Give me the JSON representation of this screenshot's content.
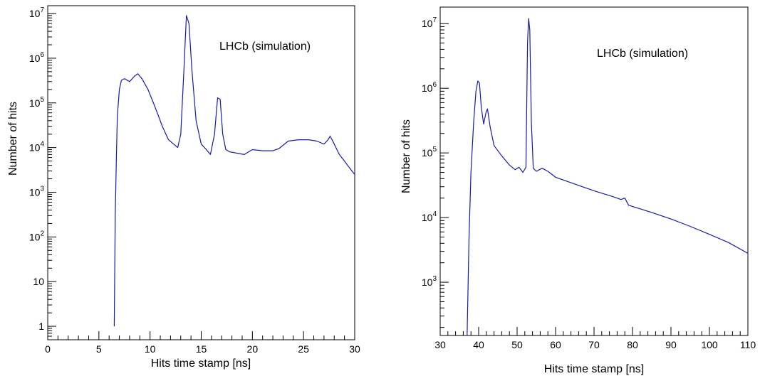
{
  "chart_data": [
    {
      "type": "line",
      "xlabel": "Hits time stamp [ns]",
      "ylabel": "Number of hits",
      "annotation": "LHCb (simulation)",
      "xlim": [
        0,
        30
      ],
      "ylim": [
        0.5,
        15000000
      ],
      "log_y": true,
      "grid": false,
      "x_ticks": [
        0,
        5,
        10,
        15,
        20,
        25,
        30
      ],
      "x_tick_labels": [
        "0",
        "5",
        "10",
        "15",
        "20",
        "25",
        "30"
      ],
      "y_ticks": [
        1,
        10,
        100,
        1000,
        10000,
        100000,
        1000000,
        10000000
      ],
      "y_tick_labels": [
        {
          "base": "1",
          "exp": ""
        },
        {
          "base": "10",
          "exp": ""
        },
        {
          "base": "10",
          "exp": "2"
        },
        {
          "base": "10",
          "exp": "3"
        },
        {
          "base": "10",
          "exp": "4"
        },
        {
          "base": "10",
          "exp": "5"
        },
        {
          "base": "10",
          "exp": "6"
        },
        {
          "base": "10",
          "exp": "7"
        }
      ],
      "series": [
        {
          "color": "#1a1aa8",
          "x": [
            6.5,
            6.6,
            6.7,
            6.8,
            7.0,
            7.2,
            7.5,
            8.0,
            8.5,
            8.8,
            9.2,
            9.8,
            10.5,
            11.2,
            11.8,
            12.3,
            12.7,
            13.0,
            13.3,
            13.55,
            13.8,
            14.1,
            14.5,
            15.0,
            15.5,
            15.9,
            16.3,
            16.6,
            16.85,
            17.1,
            17.4,
            17.8,
            18.5,
            19.2,
            20.0,
            21.0,
            22.0,
            22.6,
            23.5,
            24.5,
            25.5,
            26.3,
            27.0,
            27.4,
            27.6,
            28.0,
            28.5,
            29.0,
            29.5,
            30.0
          ],
          "y": [
            1,
            300,
            5000,
            50000,
            200000,
            320000,
            350000,
            300000,
            400000,
            450000,
            350000,
            200000,
            80000,
            30000,
            15000,
            12000,
            10000,
            20000,
            500000,
            9000000,
            6000000,
            500000,
            40000,
            12000,
            9000,
            7000,
            20000,
            130000,
            120000,
            20000,
            9000,
            8000,
            7500,
            7000,
            9000,
            8500,
            8500,
            9500,
            14000,
            15000,
            15000,
            14000,
            12000,
            15000,
            18000,
            12000,
            7000,
            5000,
            3500,
            2500
          ]
        }
      ]
    },
    {
      "type": "line",
      "xlabel": "Hits time stamp [ns]",
      "ylabel": "Number of hits",
      "annotation": "LHCb (simulation)",
      "xlim": [
        30,
        110
      ],
      "ylim": [
        150,
        18000000
      ],
      "log_y": true,
      "grid": false,
      "x_ticks": [
        30,
        40,
        50,
        60,
        70,
        80,
        90,
        100,
        110
      ],
      "x_tick_labels": [
        "30",
        "40",
        "50",
        "60",
        "70",
        "80",
        "90",
        "100",
        "110"
      ],
      "y_ticks": [
        1000,
        10000,
        100000,
        1000000,
        10000000
      ],
      "y_tick_labels": [
        {
          "base": "10",
          "exp": "3"
        },
        {
          "base": "10",
          "exp": "4"
        },
        {
          "base": "10",
          "exp": "5"
        },
        {
          "base": "10",
          "exp": "6"
        },
        {
          "base": "10",
          "exp": "7"
        }
      ],
      "series": [
        {
          "color": "#1a1aa8",
          "x": [
            37.0,
            37.5,
            38.0,
            38.7,
            39.3,
            39.8,
            40.2,
            40.7,
            41.3,
            41.9,
            42.3,
            43.0,
            44.0,
            46.0,
            48.0,
            49.5,
            50.5,
            51.5,
            52.3,
            52.7,
            53.0,
            53.3,
            53.7,
            54.2,
            55.0,
            56.5,
            58.0,
            60.0,
            65.0,
            70.0,
            75.0,
            77.0,
            78.0,
            79.0,
            85.0,
            90.0,
            95.0,
            100.0,
            105.0,
            110.0
          ],
          "y": [
            150,
            5000,
            50000,
            300000,
            900000,
            1300000,
            1200000,
            500000,
            280000,
            420000,
            480000,
            250000,
            130000,
            90000,
            65000,
            55000,
            60000,
            50000,
            60000,
            5000000,
            12000000,
            8000000,
            300000,
            58000,
            52000,
            58000,
            52000,
            42000,
            33000,
            26000,
            21000,
            19000,
            20000,
            15500,
            12000,
            9500,
            7300,
            5500,
            4100,
            2800
          ]
        }
      ]
    }
  ]
}
